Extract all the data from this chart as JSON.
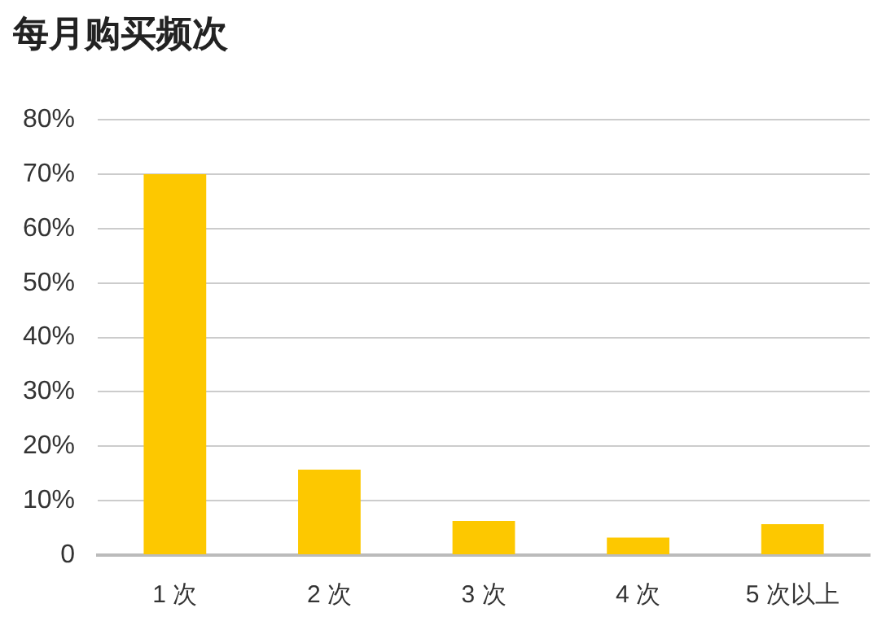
{
  "chart_data": {
    "type": "bar",
    "title": "每月购买频次",
    "categories": [
      "1 次",
      "2 次",
      "3 次",
      "4 次",
      "5 次以上"
    ],
    "series": [
      {
        "color": "#fdc800",
        "values": [
          70,
          15.7,
          6.3,
          3.2,
          5.7
        ]
      }
    ],
    "ylim": [
      0,
      80
    ],
    "yticks": [
      {
        "value": 0,
        "label": "0"
      },
      {
        "value": 10,
        "label": "10%"
      },
      {
        "value": 20,
        "label": "20%"
      },
      {
        "value": 30,
        "label": "30%"
      },
      {
        "value": 40,
        "label": "40%"
      },
      {
        "value": 50,
        "label": "50%"
      },
      {
        "value": 60,
        "label": "60%"
      },
      {
        "value": 70,
        "label": "70%"
      },
      {
        "value": 80,
        "label": "80%"
      }
    ],
    "grid": "y"
  }
}
